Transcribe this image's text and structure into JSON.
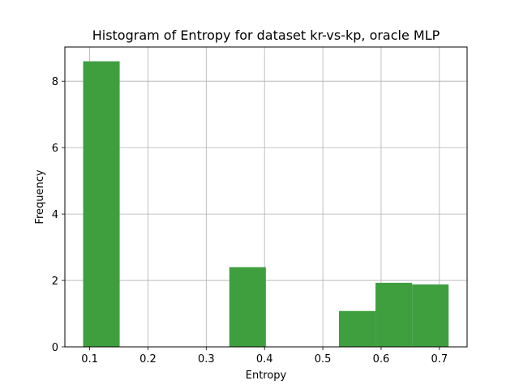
{
  "chart_data": {
    "type": "histogram",
    "title": "Histogram of Entropy for dataset kr-vs-kp, oracle MLP",
    "xlabel": "Entropy",
    "ylabel": "Frequency",
    "xlim": [
      0.0575,
      0.7475
    ],
    "ylim": [
      0,
      9.03
    ],
    "xticks": [
      0.1,
      0.2,
      0.3,
      0.4,
      0.5,
      0.6,
      0.7
    ],
    "xtick_labels": [
      "0.1",
      "0.2",
      "0.3",
      "0.4",
      "0.5",
      "0.6",
      "0.7"
    ],
    "yticks": [
      0,
      2,
      4,
      6,
      8
    ],
    "ytick_labels": [
      "0",
      "2",
      "4",
      "6",
      "8"
    ],
    "grid": true,
    "bar_color": "#3f9f3f",
    "bins": [
      {
        "x0": 0.0888,
        "x1": 0.1515,
        "value": 8.6
      },
      {
        "x0": 0.1515,
        "x1": 0.2142,
        "value": 0
      },
      {
        "x0": 0.2142,
        "x1": 0.2769,
        "value": 0
      },
      {
        "x0": 0.2769,
        "x1": 0.3396,
        "value": 0
      },
      {
        "x0": 0.3396,
        "x1": 0.4023,
        "value": 2.4
      },
      {
        "x0": 0.4023,
        "x1": 0.465,
        "value": 0
      },
      {
        "x0": 0.465,
        "x1": 0.5277,
        "value": 0
      },
      {
        "x0": 0.5277,
        "x1": 0.5904,
        "value": 1.08
      },
      {
        "x0": 0.5904,
        "x1": 0.6531,
        "value": 1.93
      },
      {
        "x0": 0.6531,
        "x1": 0.7158,
        "value": 1.88
      }
    ]
  }
}
